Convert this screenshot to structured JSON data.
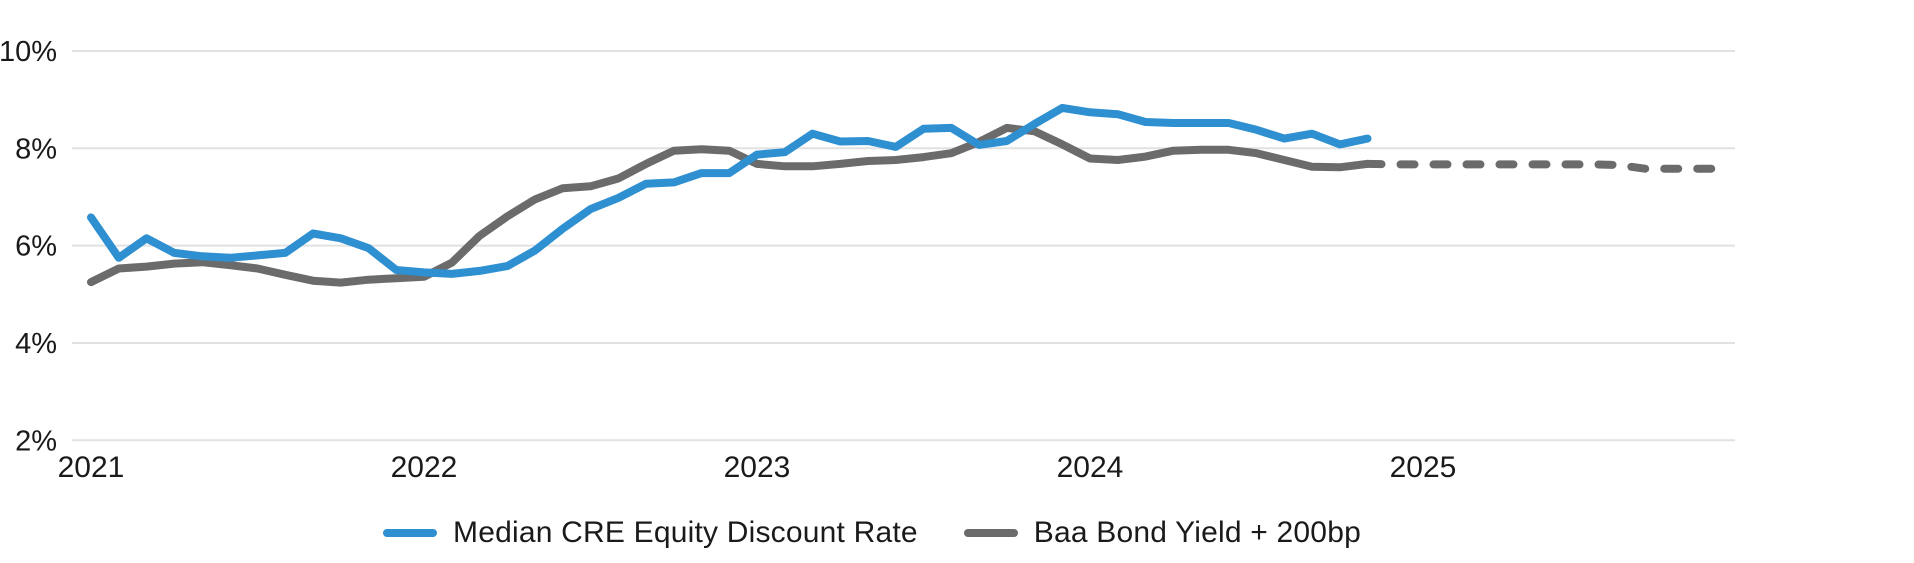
{
  "colors": {
    "background": "#FFFFFF",
    "gridline": "#E2E2E2",
    "axis_text": "#1A1A1A",
    "blue_series": "#2E8FD1",
    "gray_series": "#6B6B6B"
  },
  "chart_data": {
    "type": "line",
    "title": "",
    "xlabel": "",
    "ylabel": "",
    "grid": "horizontal-only",
    "x_axis": {
      "start": "Jan 2021",
      "end": "Dec 2025",
      "months_total": 60,
      "tick_labels": [
        "2021",
        "2022",
        "2023",
        "2024",
        "2025"
      ],
      "tick_month_indexes": [
        0,
        12,
        24,
        36,
        48
      ]
    },
    "y_axis": {
      "unit": "%",
      "ylim": [
        2,
        10
      ],
      "tick_values": [
        10,
        8,
        6,
        4,
        2
      ],
      "tick_labels": [
        "10%",
        "8%",
        "6%",
        "4%",
        "2%"
      ]
    },
    "series": [
      {
        "name": "Baa Bond Yield + 200bp",
        "color": "#6B6B6B",
        "style": "solid",
        "start_month_index": 0,
        "values": [
          5.25,
          5.53,
          5.57,
          5.63,
          5.66,
          5.6,
          5.53,
          5.4,
          5.28,
          5.24,
          5.3,
          5.33,
          5.36,
          5.65,
          6.2,
          6.6,
          6.95,
          7.18,
          7.22,
          7.38,
          7.68,
          7.95,
          7.98,
          7.95,
          7.68,
          7.63,
          7.63,
          7.68,
          7.74,
          7.76,
          7.82,
          7.9,
          8.13,
          8.42,
          8.35,
          8.08,
          7.79,
          7.76,
          7.83,
          7.95,
          7.97,
          7.97,
          7.9,
          7.76,
          7.62,
          7.61,
          7.68
        ]
      },
      {
        "name": "Baa Bond Yield + 200bp (forecast)",
        "color": "#6B6B6B",
        "style": "dashed",
        "start_month_index": 46,
        "values": [
          7.68,
          7.67,
          7.67,
          7.67,
          7.67,
          7.67,
          7.67,
          7.67,
          7.67,
          7.66,
          7.58,
          7.58,
          7.58,
          7.58
        ]
      },
      {
        "name": "Median CRE Equity Discount Rate",
        "color": "#2E8FD1",
        "style": "solid",
        "start_month_index": 0,
        "values": [
          6.58,
          5.75,
          6.15,
          5.85,
          5.78,
          5.75,
          5.8,
          5.85,
          6.25,
          6.15,
          5.95,
          5.5,
          5.45,
          5.42,
          5.48,
          5.58,
          5.9,
          6.35,
          6.75,
          6.98,
          7.27,
          7.3,
          7.49,
          7.49,
          7.87,
          7.92,
          8.3,
          8.14,
          8.15,
          8.03,
          8.4,
          8.42,
          8.07,
          8.15,
          8.5,
          8.83,
          8.74,
          8.7,
          8.54,
          8.52,
          8.52,
          8.52,
          8.38,
          8.2,
          8.3,
          8.08,
          8.2
        ]
      }
    ],
    "legend": {
      "position": "bottom-center",
      "items": [
        {
          "label": "Median CRE Equity Discount Rate",
          "color": "#2E8FD1"
        },
        {
          "label": "Baa Bond Yield + 200bp",
          "color": "#6B6B6B"
        }
      ]
    }
  }
}
